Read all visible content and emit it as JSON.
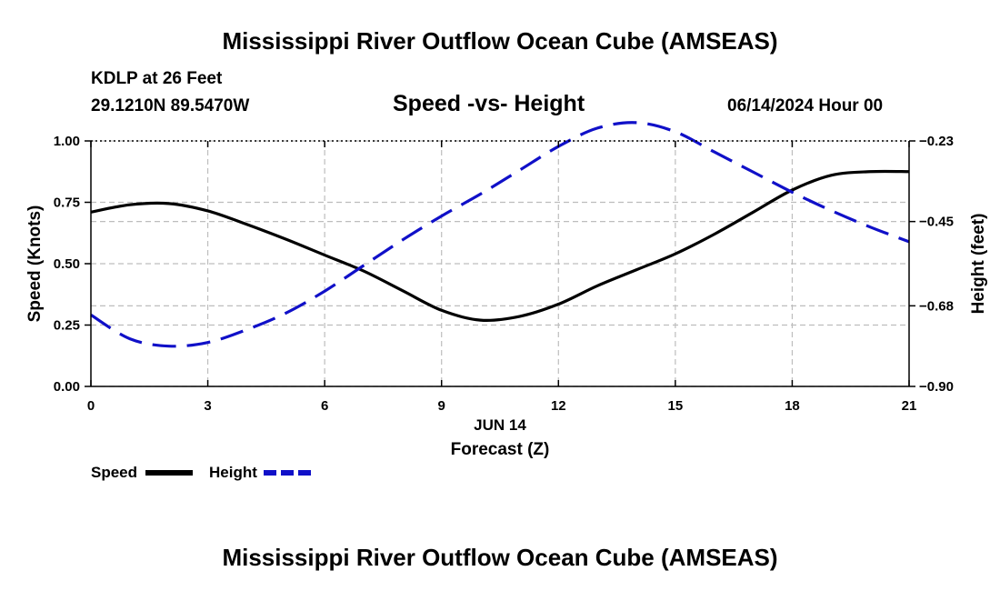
{
  "page": {
    "title": "Mississippi River Outflow Ocean Cube (AMSEAS)",
    "footer_title": "Mississippi River Outflow Ocean Cube (AMSEAS)",
    "station": "KDLP at 26 Feet",
    "coordinates": "29.1210N  89.5470W",
    "subtitle": "Speed -vs- Height",
    "datetime": "06/14/2024 Hour 00"
  },
  "chart_data": {
    "type": "line",
    "title": "Speed -vs- Height",
    "xlabel": "Forecast (Z)",
    "xlabel_date": "JUN 14",
    "ylabel_left": "Speed (Knots)",
    "ylabel_right": "Height (feet)",
    "xlim": [
      0,
      21
    ],
    "ylim_left": [
      0,
      1.0
    ],
    "ylim_right": [
      -0.9,
      -0.23
    ],
    "x_ticks": [
      0,
      3,
      6,
      9,
      12,
      15,
      18,
      21
    ],
    "x_tick_labels": [
      "0",
      "3",
      "6",
      "9",
      "12",
      "15",
      "18",
      "21"
    ],
    "y_left_ticks": [
      0.0,
      0.25,
      0.5,
      0.75,
      1.0
    ],
    "y_left_tick_labels": [
      "0.00",
      "0.25",
      "0.50",
      "0.75",
      "1.00"
    ],
    "y_right_ticks": [
      -0.9,
      -0.68,
      -0.45,
      -0.23
    ],
    "y_right_tick_labels": [
      "−0.90",
      "−0.68",
      "−0.45",
      "−0.23"
    ],
    "grid": true,
    "legend_position": "bottom-left",
    "series": [
      {
        "name": "Speed",
        "axis": "left",
        "color": "#000000",
        "style": "solid",
        "x": [
          0,
          1,
          2,
          3,
          4,
          5,
          6,
          7,
          8,
          9,
          10,
          11,
          12,
          13,
          14,
          15,
          16,
          17,
          18,
          19,
          20,
          21
        ],
        "values": [
          0.71,
          0.74,
          0.745,
          0.715,
          0.66,
          0.6,
          0.535,
          0.47,
          0.39,
          0.31,
          0.27,
          0.285,
          0.335,
          0.41,
          0.475,
          0.54,
          0.62,
          0.71,
          0.8,
          0.86,
          0.875,
          0.875
        ]
      },
      {
        "name": "Height",
        "axis": "right",
        "color": "#1010c8",
        "style": "dashed",
        "x": [
          0,
          1,
          2,
          3,
          4,
          5,
          6,
          7,
          8,
          9,
          10,
          11,
          12,
          13,
          14,
          15,
          16,
          17,
          18,
          19,
          20,
          21
        ],
        "values": [
          -0.705,
          -0.77,
          -0.79,
          -0.78,
          -0.745,
          -0.7,
          -0.64,
          -0.57,
          -0.5,
          -0.435,
          -0.375,
          -0.31,
          -0.245,
          -0.195,
          -0.18,
          -0.205,
          -0.26,
          -0.315,
          -0.37,
          -0.42,
          -0.465,
          -0.505
        ]
      }
    ],
    "legend": [
      {
        "label": "Speed",
        "color": "#000000",
        "style": "solid"
      },
      {
        "label": "Height",
        "color": "#1010c8",
        "style": "dashed"
      }
    ]
  }
}
